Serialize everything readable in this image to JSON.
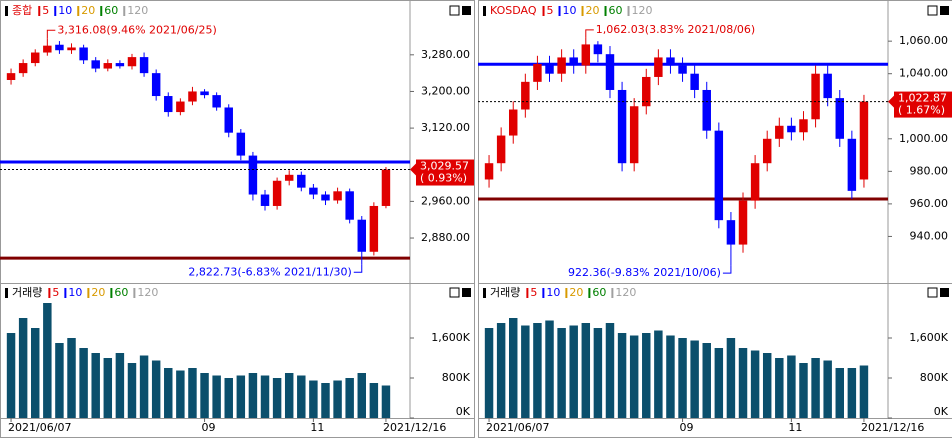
{
  "chart_data": [
    {
      "type": "candlestick",
      "name": "종합",
      "ma_labels": [
        "5",
        "10",
        "20",
        "60",
        "120"
      ],
      "ma_colors": [
        "#e00000",
        "#0000ff",
        "#d89a00",
        "#008000",
        "#a0a0a0"
      ],
      "up_color": "#e00000",
      "down_color": "#0000ff",
      "categories": [
        "2021/06/07",
        null,
        null,
        null,
        null,
        null,
        null,
        null,
        null,
        null,
        null,
        null,
        null,
        null,
        null,
        null,
        "09",
        null,
        null,
        null,
        null,
        null,
        null,
        null,
        null,
        "11",
        null,
        null,
        null,
        null,
        null,
        "2021/12/16"
      ],
      "open": [
        3225,
        3240,
        3262,
        3285,
        3302,
        3290,
        3296,
        3268,
        3250,
        3262,
        3255,
        3275,
        3240,
        3190,
        3155,
        3178,
        3200,
        3192,
        3165,
        3110,
        3060,
        2975,
        2950,
        3005,
        3018,
        2990,
        2975,
        2962,
        2982,
        2920,
        2850,
        2950
      ],
      "high": [
        3250,
        3270,
        3292,
        3316.08,
        3310,
        3305,
        3302,
        3275,
        3270,
        3268,
        3282,
        3285,
        3248,
        3198,
        3185,
        3210,
        3205,
        3198,
        3172,
        3118,
        3068,
        2985,
        3012,
        3028,
        3025,
        2998,
        2982,
        2990,
        2988,
        2928,
        2958,
        3035
      ],
      "low": [
        3215,
        3232,
        3255,
        3278,
        3282,
        3282,
        3260,
        3242,
        3244,
        3250,
        3248,
        3232,
        3180,
        3145,
        3148,
        3170,
        3185,
        3158,
        3100,
        3050,
        2962,
        2940,
        2942,
        2995,
        2982,
        2965,
        2952,
        2955,
        2912,
        2822.73,
        2842,
        2945
      ],
      "close": [
        3240,
        3262,
        3285,
        3300,
        3290,
        3296,
        3268,
        3250,
        3262,
        3255,
        3275,
        3240,
        3190,
        3155,
        3178,
        3200,
        3192,
        3165,
        3110,
        3060,
        2975,
        2950,
        3005,
        3018,
        2990,
        2975,
        2962,
        2982,
        2920,
        2850,
        2950,
        3029.57
      ],
      "ylim": [
        2784,
        3356
      ],
      "yticks": [
        {
          "value": 3280,
          "label": "3,280.00"
        },
        {
          "value": 3200,
          "label": "3,200.00"
        },
        {
          "value": 3120,
          "label": "3,120.00"
        },
        {
          "value": 2960,
          "label": "2,960.00"
        },
        {
          "value": 2880,
          "label": "2,880.00"
        }
      ],
      "hlines": [
        {
          "value": 3046,
          "color": "#0000ff"
        },
        {
          "value": 2836,
          "color": "#800000"
        }
      ],
      "price_label": {
        "value": 3029.57,
        "label": "3,029.57",
        "change": "( 0.93%)"
      },
      "annotations": [
        {
          "text": "3,316.08(9.46% 2021/06/25)",
          "value": 3316.08,
          "at": "high"
        },
        {
          "text": "2,822.73(-6.83% 2021/11/30)",
          "value": 2822.73,
          "at": "low"
        }
      ],
      "volume": {
        "name": "거래량",
        "color": "#0b4f6c",
        "values": [
          1700,
          2000,
          1800,
          2300,
          1500,
          1600,
          1400,
          1300,
          1200,
          1300,
          1100,
          1250,
          1150,
          1000,
          950,
          1000,
          900,
          850,
          800,
          850,
          900,
          850,
          800,
          900,
          850,
          750,
          700,
          750,
          800,
          900,
          700,
          650
        ],
        "ylim": [
          0,
          2660
        ],
        "yticks": [
          {
            "value": 1600,
            "label": "1,600K"
          },
          {
            "value": 800,
            "label": "800K"
          },
          {
            "value": 0,
            "label": "0K"
          }
        ]
      }
    },
    {
      "type": "candlestick",
      "name": "KOSDAQ",
      "ma_labels": [
        "5",
        "10",
        "20",
        "60",
        "120"
      ],
      "ma_colors": [
        "#e00000",
        "#0000ff",
        "#d89a00",
        "#008000",
        "#a0a0a0"
      ],
      "up_color": "#e00000",
      "down_color": "#0000ff",
      "categories": [
        "2021/06/07",
        null,
        null,
        null,
        null,
        null,
        null,
        null,
        null,
        null,
        null,
        null,
        null,
        null,
        null,
        null,
        "09",
        null,
        null,
        null,
        null,
        null,
        null,
        null,
        null,
        "11",
        null,
        null,
        null,
        null,
        null,
        "2021/12/16"
      ],
      "open": [
        975,
        985,
        1002,
        1018,
        1035,
        1046,
        1040,
        1050,
        1045,
        1058,
        1052,
        1030,
        985,
        1020,
        1038,
        1050,
        1045,
        1040,
        1030,
        1005,
        950,
        935,
        962,
        985,
        1000,
        1008,
        1004,
        1012,
        1040,
        1025,
        1000,
        975
      ],
      "high": [
        990,
        1007,
        1023,
        1040,
        1051,
        1051,
        1055,
        1055,
        1062.03,
        1060,
        1057,
        1035,
        1025,
        1043,
        1055,
        1055,
        1050,
        1045,
        1035,
        1010,
        955,
        967,
        990,
        1005,
        1013,
        1013,
        1017,
        1045,
        1045,
        1030,
        1005,
        1027
      ],
      "low": [
        970,
        980,
        997,
        1013,
        1030,
        1035,
        1035,
        1040,
        1040,
        1047,
        1025,
        980,
        980,
        1015,
        1033,
        1040,
        1035,
        1025,
        1000,
        945,
        922.36,
        930,
        957,
        980,
        995,
        999,
        999,
        1007,
        1020,
        995,
        963,
        970
      ],
      "close": [
        985,
        1002,
        1018,
        1035,
        1046,
        1040,
        1050,
        1045,
        1058,
        1052,
        1030,
        985,
        1020,
        1038,
        1050,
        1045,
        1040,
        1030,
        1005,
        950,
        935,
        962,
        985,
        1000,
        1008,
        1004,
        1012,
        1040,
        1025,
        1000,
        968,
        1022.87
      ],
      "ylim": [
        912,
        1073
      ],
      "yticks": [
        {
          "value": 1060,
          "label": "1,060.00"
        },
        {
          "value": 1040,
          "label": "1,040.00"
        },
        {
          "value": 1000,
          "label": "1,000.00"
        },
        {
          "value": 980,
          "label": "980.00"
        },
        {
          "value": 960,
          "label": "960.00"
        },
        {
          "value": 940,
          "label": "940.00"
        }
      ],
      "hlines": [
        {
          "value": 1045.8,
          "color": "#0000ff"
        },
        {
          "value": 963,
          "color": "#800000"
        }
      ],
      "price_label": {
        "value": 1022.87,
        "label": "1,022.87",
        "change": "( 1.67%)"
      },
      "annotations": [
        {
          "text": "1,062.03(3.83% 2021/08/06)",
          "value": 1062.03,
          "at": "high"
        },
        {
          "text": "922.36(-9.83% 2021/10/06)",
          "value": 922.36,
          "at": "low"
        }
      ],
      "volume": {
        "name": "거래량",
        "color": "#0b4f6c",
        "values": [
          1800,
          1900,
          2000,
          1850,
          1900,
          1950,
          1800,
          1850,
          1900,
          1800,
          1900,
          1700,
          1650,
          1700,
          1750,
          1650,
          1600,
          1550,
          1500,
          1400,
          1600,
          1400,
          1350,
          1300,
          1200,
          1250,
          1100,
          1200,
          1150,
          1000,
          1000,
          1050
        ],
        "ylim": [
          0,
          2660
        ],
        "yticks": [
          {
            "value": 1600,
            "label": "1,600K"
          },
          {
            "value": 800,
            "label": "800K"
          },
          {
            "value": 0,
            "label": "0K"
          }
        ]
      }
    }
  ]
}
